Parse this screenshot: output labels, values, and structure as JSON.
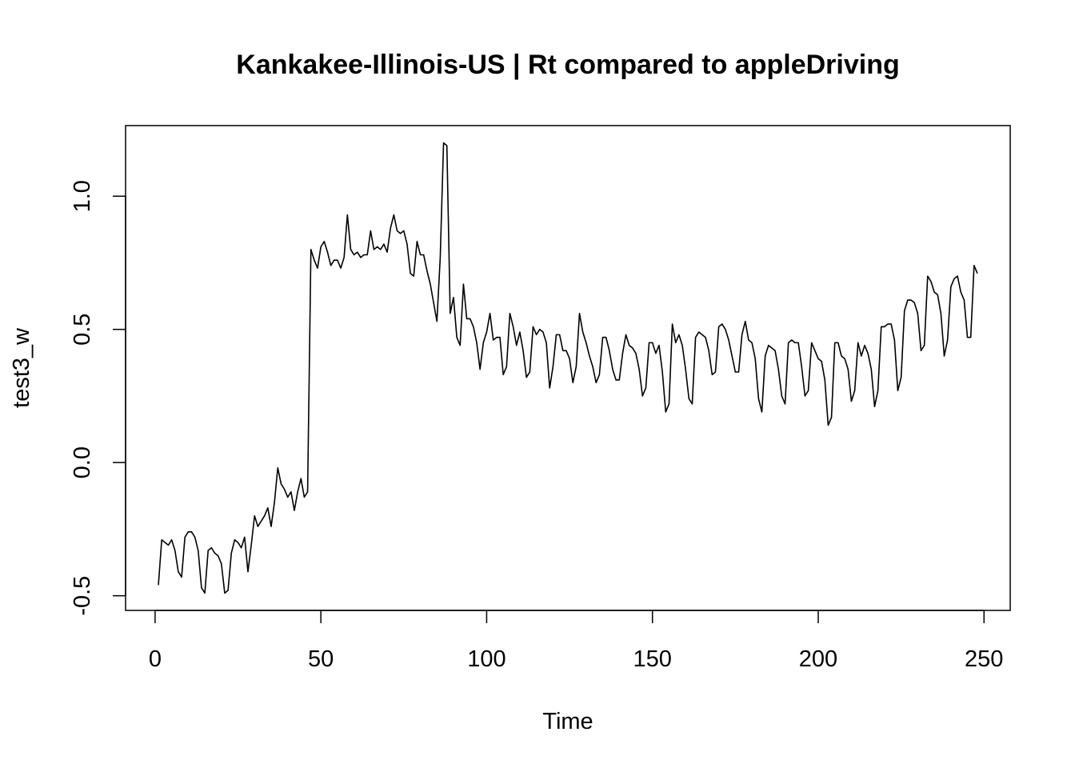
{
  "chart_data": {
    "type": "line",
    "title": "Kankakee-Illinois-US | Rt compared to appleDriving",
    "xlabel": "Time",
    "ylabel": "test3_w",
    "xlim": [
      -8.9,
      257.9
    ],
    "ylim": [
      -0.555,
      1.265
    ],
    "x_ticks": [
      0,
      50,
      100,
      150,
      200,
      250
    ],
    "x_tick_labels": [
      "0",
      "50",
      "100",
      "150",
      "200",
      "250"
    ],
    "y_ticks": [
      -0.5,
      0.0,
      0.5,
      1.0
    ],
    "y_tick_labels": [
      "-0.5",
      "0.0",
      "0.5",
      "1.0"
    ],
    "grid": false,
    "legend": "none",
    "line_color": "#000000",
    "series": [
      {
        "x_start": 1,
        "x_step": 1,
        "values": [
          -0.46,
          -0.29,
          -0.3,
          -0.31,
          -0.29,
          -0.33,
          -0.41,
          -0.43,
          -0.28,
          -0.26,
          -0.26,
          -0.28,
          -0.33,
          -0.47,
          -0.49,
          -0.33,
          -0.32,
          -0.34,
          -0.35,
          -0.38,
          -0.49,
          -0.48,
          -0.34,
          -0.29,
          -0.3,
          -0.32,
          -0.28,
          -0.41,
          -0.31,
          -0.2,
          -0.24,
          -0.22,
          -0.2,
          -0.17,
          -0.24,
          -0.15,
          -0.02,
          -0.08,
          -0.1,
          -0.13,
          -0.11,
          -0.18,
          -0.11,
          -0.06,
          -0.13,
          -0.11,
          0.8,
          0.76,
          0.73,
          0.81,
          0.83,
          0.79,
          0.74,
          0.76,
          0.76,
          0.73,
          0.77,
          0.93,
          0.8,
          0.78,
          0.79,
          0.77,
          0.78,
          0.78,
          0.87,
          0.8,
          0.81,
          0.8,
          0.82,
          0.79,
          0.88,
          0.93,
          0.87,
          0.86,
          0.87,
          0.82,
          0.71,
          0.7,
          0.83,
          0.78,
          0.78,
          0.72,
          0.67,
          0.6,
          0.53,
          0.77,
          1.2,
          1.19,
          0.56,
          0.62,
          0.47,
          0.44,
          0.67,
          0.54,
          0.54,
          0.51,
          0.45,
          0.35,
          0.45,
          0.49,
          0.56,
          0.46,
          0.47,
          0.47,
          0.33,
          0.36,
          0.56,
          0.51,
          0.44,
          0.49,
          0.42,
          0.32,
          0.34,
          0.51,
          0.48,
          0.5,
          0.49,
          0.45,
          0.28,
          0.36,
          0.48,
          0.48,
          0.42,
          0.42,
          0.39,
          0.3,
          0.36,
          0.56,
          0.49,
          0.45,
          0.4,
          0.36,
          0.3,
          0.33,
          0.47,
          0.47,
          0.42,
          0.35,
          0.31,
          0.31,
          0.41,
          0.48,
          0.44,
          0.43,
          0.41,
          0.35,
          0.25,
          0.28,
          0.45,
          0.45,
          0.41,
          0.44,
          0.34,
          0.19,
          0.22,
          0.52,
          0.45,
          0.48,
          0.44,
          0.35,
          0.24,
          0.22,
          0.47,
          0.49,
          0.48,
          0.47,
          0.42,
          0.33,
          0.34,
          0.51,
          0.52,
          0.5,
          0.46,
          0.4,
          0.34,
          0.34,
          0.48,
          0.53,
          0.46,
          0.45,
          0.39,
          0.24,
          0.19,
          0.4,
          0.44,
          0.43,
          0.42,
          0.35,
          0.25,
          0.22,
          0.45,
          0.46,
          0.45,
          0.45,
          0.36,
          0.25,
          0.27,
          0.45,
          0.42,
          0.39,
          0.38,
          0.31,
          0.14,
          0.17,
          0.45,
          0.45,
          0.4,
          0.39,
          0.35,
          0.23,
          0.27,
          0.45,
          0.4,
          0.44,
          0.41,
          0.35,
          0.21,
          0.27,
          0.51,
          0.51,
          0.52,
          0.52,
          0.46,
          0.27,
          0.32,
          0.57,
          0.61,
          0.61,
          0.6,
          0.56,
          0.42,
          0.44,
          0.7,
          0.68,
          0.64,
          0.63,
          0.56,
          0.4,
          0.46,
          0.66,
          0.69,
          0.7,
          0.64,
          0.61,
          0.47,
          0.47,
          0.74,
          0.71
        ]
      }
    ]
  }
}
